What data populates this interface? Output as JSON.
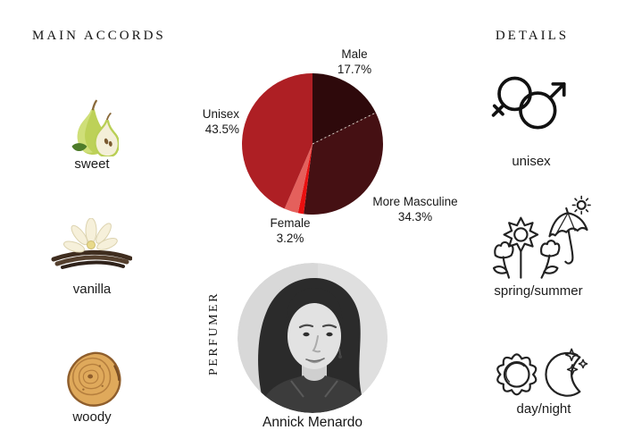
{
  "accords_panel": {
    "title": "MAIN ACCORDS",
    "items": [
      {
        "label": "sweet",
        "icon": "pear-icon"
      },
      {
        "label": "vanilla",
        "icon": "vanilla-icon"
      },
      {
        "label": "woody",
        "icon": "wood-slice-icon"
      }
    ]
  },
  "details_panel": {
    "title": "DETAILS",
    "items": [
      {
        "label": "unisex",
        "icon": "unisex-gender-icon"
      },
      {
        "label": "spring/summer",
        "icon": "spring-summer-icon"
      },
      {
        "label": "day/night",
        "icon": "day-night-icon"
      }
    ]
  },
  "perfumer": {
    "section_label": "PERFUMER",
    "name": "Annick Menardo"
  },
  "chart_data": {
    "type": "pie",
    "start_at": "12-oclock",
    "direction": "clockwise",
    "radius_px": 79,
    "divider_after_slice_index": 0,
    "divider_color": "#d8cfc6",
    "slices": [
      {
        "label": "Male",
        "value": 17.7,
        "pct_text": "17.7%",
        "color": "#2E090B"
      },
      {
        "label": "More Masculine",
        "value": 34.3,
        "pct_text": "34.3%",
        "color": "#451013"
      },
      {
        "label": "",
        "value": 1.3,
        "pct_text": "",
        "color": "#E90F0F"
      },
      {
        "label": "Female",
        "value": 3.2,
        "pct_text": "3.2%",
        "color": "#E4605C"
      },
      {
        "label": "Unisex",
        "value": 43.5,
        "pct_text": "43.5%",
        "color": "#AE1F24"
      }
    ]
  }
}
